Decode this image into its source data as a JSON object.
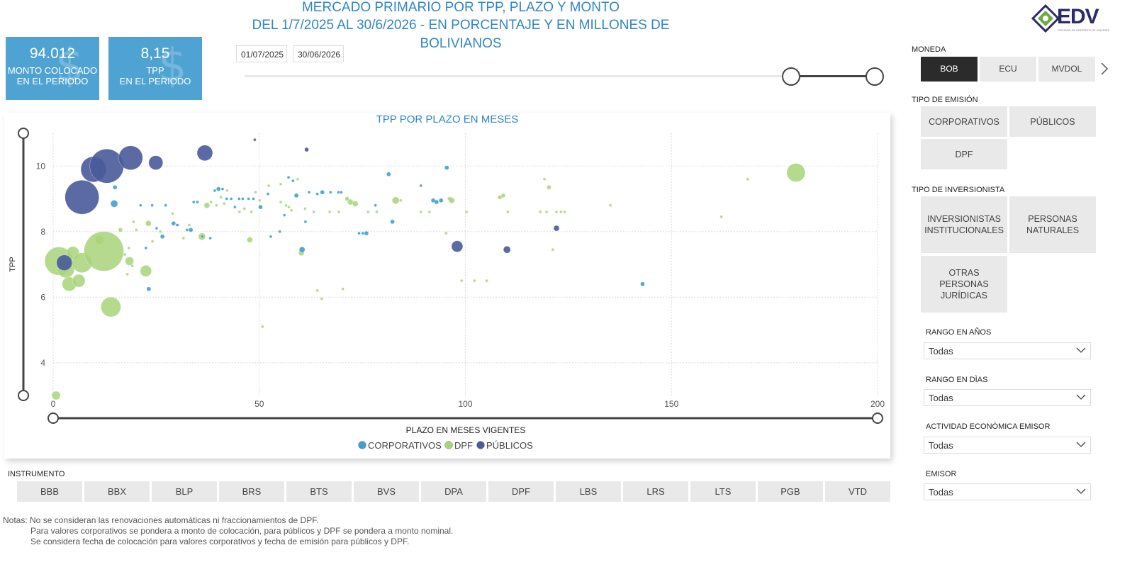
{
  "header": {
    "title_line1": "MERCADO PRIMARIO POR TPP, PLAZO Y MONTO",
    "title_line2": "DEL 1/7/2025 AL 30/6/2026 - EN PORCENTAJE Y EN MILLONES DE BOLIVIANOS",
    "logo_text": "EDV",
    "logo_subtext": "ENTIDAD DE DEPÓSITO DE VALORES"
  },
  "kpis": [
    {
      "value": "94.012",
      "label1": "MONTO COLOCADO",
      "label2": "EN EL PERIODO",
      "icon": "dollar-icon"
    },
    {
      "value": "8,15",
      "label1": "TPP",
      "label2": "EN EL PERIODO",
      "icon": "dollar-icon"
    }
  ],
  "date_filter": {
    "start": "01/07/2025",
    "end": "30/06/2026"
  },
  "filters": {
    "moneda": {
      "label": "MONEDA",
      "options": [
        "BOB",
        "ECU",
        "MVDOL"
      ],
      "selected": "BOB"
    },
    "tipo_emision": {
      "label": "TIPO DE EMISIÓN",
      "options": [
        "CORPORATIVOS",
        "PÚBLICOS",
        "DPF"
      ]
    },
    "tipo_inversionista": {
      "label": "TIPO DE INVERSIONISTA",
      "options": [
        "INVERSIONISTAS INSTITUCIONALES",
        "PERSONAS NATURALES",
        "OTRAS PERSONAS JURÍDICAS"
      ]
    },
    "rango_anios": {
      "label": "RANGO EN AÑOS",
      "value": "Todas"
    },
    "rango_dias": {
      "label": "RANGO EN DÌAS",
      "value": "Todas"
    },
    "actividad": {
      "label": "ACTIVIDAD ECONÓMICA EMISOR",
      "value": "Todas"
    },
    "emisor": {
      "label": "EMISOR",
      "value": "Todas"
    }
  },
  "instrumento": {
    "label": "INSTRUMENTO",
    "options": [
      "BBB",
      "BBX",
      "BLP",
      "BRS",
      "BTS",
      "BVS",
      "DPA",
      "DPF",
      "LBS",
      "LRS",
      "LTS",
      "PGB",
      "VTD"
    ]
  },
  "notes": [
    "Notas: No se consideran las renovaciones automáticas ni fraccionamientos de DPF.",
    "Para valores corporativos se pondera a monto de colocación, para públicos y DPF se pondera a monto nominal.",
    "Se considera fecha de colocación para valores corporativos y fecha de emisión para públicos y DPF."
  ],
  "colors": {
    "corporativos": "#3f9fd4",
    "dpf": "#a8d47a",
    "publicos": "#4a5a9a",
    "accent": "#2f86c6"
  },
  "chart_data": {
    "type": "scatter",
    "title": "TPP POR PLAZO EN MESES",
    "xlabel": "PLAZO EN MESES VIGENTES",
    "ylabel": "TPP",
    "xlim": [
      0,
      200
    ],
    "ylim": [
      3,
      11
    ],
    "xticks": [
      "0",
      "50",
      "100",
      "150",
      "200"
    ],
    "yticks": [
      "4",
      "6",
      "8",
      "10"
    ],
    "series": [
      {
        "name": "CORPORATIVOS",
        "color": "#3f9fd4",
        "points": [
          [
            11.3,
            9.9,
            3
          ],
          [
            14.8,
            8.85,
            5
          ],
          [
            15,
            9.35,
            3
          ],
          [
            21.2,
            8.8,
            2
          ],
          [
            22.5,
            7.5,
            2
          ],
          [
            23.2,
            6.25,
            3
          ],
          [
            24,
            8.8,
            2
          ],
          [
            25.1,
            8.1,
            2
          ],
          [
            26.5,
            7.85,
            3
          ],
          [
            27.3,
            8.8,
            2
          ],
          [
            29.2,
            8.25,
            3
          ],
          [
            30.1,
            8.2,
            2
          ],
          [
            32.5,
            8.05,
            2
          ],
          [
            33.4,
            8.05,
            3
          ],
          [
            34.1,
            8.9,
            2
          ],
          [
            35,
            8.9,
            2
          ],
          [
            36.2,
            7.85,
            2
          ],
          [
            38.1,
            7.8,
            2
          ],
          [
            39.2,
            9.25,
            2
          ],
          [
            40.1,
            9.3,
            3
          ],
          [
            41.1,
            9.3,
            2
          ],
          [
            42.1,
            9.0,
            2
          ],
          [
            43.2,
            9.0,
            2
          ],
          [
            44.1,
            8.75,
            2
          ],
          [
            45.1,
            9.0,
            2
          ],
          [
            46,
            9.0,
            2
          ],
          [
            47.4,
            9.0,
            2
          ],
          [
            48.6,
            9.0,
            2
          ],
          [
            50.3,
            8.75,
            3
          ],
          [
            52.1,
            9.15,
            2
          ],
          [
            52.8,
            7.85,
            2
          ],
          [
            55,
            8.0,
            2
          ],
          [
            56.1,
            8.5,
            2
          ],
          [
            57.1,
            9.65,
            2
          ],
          [
            58.2,
            9.55,
            2
          ],
          [
            59,
            9.1,
            3
          ],
          [
            60.4,
            7.45,
            4
          ],
          [
            61.2,
            8.3,
            2
          ],
          [
            62.1,
            9.2,
            2
          ],
          [
            64.1,
            9.15,
            2
          ],
          [
            65.3,
            9.2,
            3
          ],
          [
            67.3,
            9.2,
            2
          ],
          [
            69.2,
            9.2,
            2
          ],
          [
            69.9,
            9.2,
            2
          ],
          [
            74.2,
            7.95,
            2
          ],
          [
            75.1,
            7.95,
            2
          ],
          [
            76,
            7.95,
            3
          ],
          [
            78.2,
            8.8,
            2
          ],
          [
            81.4,
            9.75,
            3
          ],
          [
            82.3,
            8.3,
            3
          ],
          [
            89.2,
            9.4,
            2
          ],
          [
            92.2,
            8.95,
            3
          ],
          [
            93,
            8.9,
            3
          ],
          [
            94.1,
            8.95,
            3
          ],
          [
            95.5,
            9.95,
            3
          ],
          [
            143,
            6.4,
            3
          ]
        ]
      },
      {
        "name": "DPF",
        "color": "#a8d47a",
        "points": [
          [
            0.7,
            3.0,
            6
          ],
          [
            1.4,
            7.1,
            20
          ],
          [
            3.1,
            6.85,
            12
          ],
          [
            3.9,
            6.4,
            10
          ],
          [
            4.8,
            7.35,
            9
          ],
          [
            6.2,
            6.5,
            9
          ],
          [
            7,
            7.05,
            14
          ],
          [
            11.2,
            7.75,
            6
          ],
          [
            12.3,
            7.4,
            28
          ],
          [
            14,
            5.7,
            14
          ],
          [
            16.3,
            8.05,
            3
          ],
          [
            17.4,
            7.3,
            2
          ],
          [
            18,
            6.7,
            2
          ],
          [
            18.5,
            7.1,
            6
          ],
          [
            18.4,
            7.5,
            2
          ],
          [
            19.2,
            6.95,
            2
          ],
          [
            19.5,
            8.3,
            2
          ],
          [
            20.2,
            8.05,
            2
          ],
          [
            22.5,
            6.8,
            8
          ],
          [
            23.1,
            8.25,
            4
          ],
          [
            24.1,
            7.7,
            2
          ],
          [
            26,
            8.0,
            2
          ],
          [
            29,
            8.55,
            2
          ],
          [
            30.3,
            8.2,
            2
          ],
          [
            31.6,
            7.8,
            2
          ],
          [
            33,
            8.2,
            2
          ],
          [
            36.1,
            7.85,
            5
          ],
          [
            37.3,
            8.8,
            4
          ],
          [
            38.3,
            8.9,
            2
          ],
          [
            39.6,
            8.8,
            2
          ],
          [
            40.7,
            9.05,
            2
          ],
          [
            41.5,
            8.85,
            2
          ],
          [
            42.2,
            9.25,
            2
          ],
          [
            45.2,
            8.6,
            2
          ],
          [
            46.4,
            8.7,
            2
          ],
          [
            47.7,
            7.75,
            4
          ],
          [
            48.1,
            8.6,
            2
          ],
          [
            49.1,
            9.2,
            2
          ],
          [
            50.1,
            8.95,
            2
          ],
          [
            50.8,
            5.1,
            2
          ],
          [
            52.3,
            9.4,
            2
          ],
          [
            55.2,
            9.45,
            2
          ],
          [
            55.2,
            8.9,
            2
          ],
          [
            56.5,
            8.8,
            2
          ],
          [
            57.2,
            8.75,
            2
          ],
          [
            57.8,
            8.65,
            2
          ],
          [
            59.3,
            9.6,
            2
          ],
          [
            60.2,
            7.35,
            4
          ],
          [
            61.1,
            8.7,
            2
          ],
          [
            63.2,
            8.6,
            2
          ],
          [
            64.1,
            6.2,
            2
          ],
          [
            65.2,
            5.95,
            2
          ],
          [
            67.1,
            8.6,
            2
          ],
          [
            69.3,
            8.6,
            2
          ],
          [
            70.3,
            6.25,
            2
          ],
          [
            71.3,
            9.0,
            3
          ],
          [
            72.1,
            8.9,
            4
          ],
          [
            73.3,
            8.85,
            4
          ],
          [
            76.4,
            8.6,
            2
          ],
          [
            78.5,
            8.6,
            2
          ],
          [
            83.1,
            8.95,
            5
          ],
          [
            84.3,
            8.95,
            2
          ],
          [
            89.2,
            8.6,
            2
          ],
          [
            91.3,
            8.6,
            2
          ],
          [
            95.3,
            7.95,
            2
          ],
          [
            96.2,
            9.0,
            3
          ],
          [
            96.7,
            8.95,
            4
          ],
          [
            99.1,
            6.5,
            2
          ],
          [
            100.3,
            8.6,
            2
          ],
          [
            102.2,
            6.5,
            2
          ],
          [
            105.2,
            6.5,
            2
          ],
          [
            108.4,
            9.05,
            3
          ],
          [
            109.2,
            9.1,
            3
          ],
          [
            110.3,
            8.6,
            2
          ],
          [
            118.2,
            8.6,
            2
          ],
          [
            119.2,
            9.6,
            2
          ],
          [
            119.7,
            8.6,
            2
          ],
          [
            120.3,
            9.35,
            3
          ],
          [
            121.2,
            7.45,
            2
          ],
          [
            122.1,
            8.6,
            2
          ],
          [
            123.2,
            8.6,
            2
          ],
          [
            124.1,
            8.6,
            2
          ],
          [
            135.2,
            8.8,
            2
          ],
          [
            162.1,
            8.45,
            2
          ],
          [
            168.5,
            9.6,
            2
          ],
          [
            180.2,
            9.8,
            13
          ]
        ]
      },
      {
        "name": "PÚBLICOS",
        "color": "#4a5a9a",
        "points": [
          [
            2.7,
            7.05,
            11
          ],
          [
            7,
            9.05,
            24
          ],
          [
            9.8,
            9.9,
            18
          ],
          [
            13,
            10.0,
            24
          ],
          [
            18.8,
            10.25,
            17
          ],
          [
            24.9,
            10.1,
            10
          ],
          [
            36.8,
            10.4,
            11
          ],
          [
            48.9,
            10.8,
            2
          ],
          [
            61.5,
            10.5,
            3
          ],
          [
            98,
            7.55,
            8
          ],
          [
            110.1,
            7.45,
            5
          ],
          [
            122.1,
            8.1,
            4
          ]
        ]
      }
    ],
    "legend": "bottom-center",
    "grid": true
  }
}
